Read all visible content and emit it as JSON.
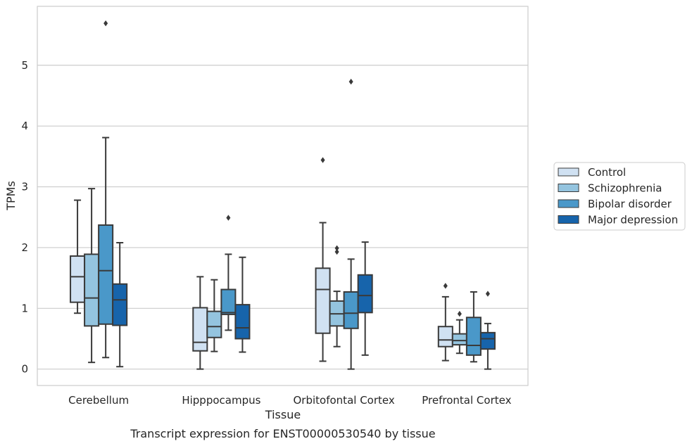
{
  "caption": "Transcript expression for ENST00000530540 by tissue",
  "chart_data": {
    "type": "boxplot",
    "xlabel": "Tissue",
    "ylabel": "TPMs",
    "ylim": [
      -0.27,
      5.97
    ],
    "yticks": [
      0,
      1,
      2,
      3,
      4,
      5
    ],
    "grid": true,
    "legend_placement": "right",
    "categories": [
      "Cerebellum",
      "Hipppocampus",
      "Orbitofontal Cortex",
      "Prefrontal Cortex"
    ],
    "series": [
      {
        "name": "Control",
        "color": "#d0e1f2",
        "boxes": [
          {
            "whisker_low": 0.92,
            "q1": 1.1,
            "median": 1.52,
            "q3": 1.86,
            "whisker_high": 2.78,
            "outliers": []
          },
          {
            "whisker_low": 0.0,
            "q1": 0.3,
            "median": 0.44,
            "q3": 1.01,
            "whisker_high": 1.52,
            "outliers": []
          },
          {
            "whisker_low": 0.13,
            "q1": 0.59,
            "median": 1.31,
            "q3": 1.66,
            "whisker_high": 2.41,
            "outliers": [
              3.44
            ]
          },
          {
            "whisker_low": 0.14,
            "q1": 0.37,
            "median": 0.48,
            "q3": 0.7,
            "whisker_high": 1.19,
            "outliers": [
              1.37
            ]
          }
        ]
      },
      {
        "name": "Schizophrenia",
        "color": "#94c4df",
        "boxes": [
          {
            "whisker_low": 0.11,
            "q1": 0.71,
            "median": 1.17,
            "q3": 1.89,
            "whisker_high": 2.97,
            "outliers": []
          },
          {
            "whisker_low": 0.29,
            "q1": 0.52,
            "median": 0.7,
            "q3": 0.95,
            "whisker_high": 1.47,
            "outliers": []
          },
          {
            "whisker_low": 0.37,
            "q1": 0.71,
            "median": 0.91,
            "q3": 1.12,
            "whisker_high": 1.28,
            "outliers": [
              1.93,
              1.99
            ]
          },
          {
            "whisker_low": 0.26,
            "q1": 0.4,
            "median": 0.47,
            "q3": 0.58,
            "whisker_high": 0.81,
            "outliers": [
              0.91
            ]
          }
        ]
      },
      {
        "name": "Bipolar disorder",
        "color": "#4a98c9",
        "boxes": [
          {
            "whisker_low": 0.19,
            "q1": 0.74,
            "median": 1.62,
            "q3": 2.37,
            "whisker_high": 3.81,
            "outliers": [
              5.69
            ]
          },
          {
            "whisker_low": 0.64,
            "q1": 0.9,
            "median": 0.93,
            "q3": 1.31,
            "whisker_high": 1.89,
            "outliers": [
              2.49
            ]
          },
          {
            "whisker_low": 0.0,
            "q1": 0.67,
            "median": 0.92,
            "q3": 1.27,
            "whisker_high": 1.81,
            "outliers": [
              4.73
            ]
          },
          {
            "whisker_low": 0.12,
            "q1": 0.23,
            "median": 0.39,
            "q3": 0.85,
            "whisker_high": 1.27,
            "outliers": []
          }
        ]
      },
      {
        "name": "Major depression",
        "color": "#1764ab",
        "boxes": [
          {
            "whisker_low": 0.04,
            "q1": 0.72,
            "median": 1.14,
            "q3": 1.4,
            "whisker_high": 2.08,
            "outliers": []
          },
          {
            "whisker_low": 0.28,
            "q1": 0.5,
            "median": 0.68,
            "q3": 1.06,
            "whisker_high": 1.84,
            "outliers": []
          },
          {
            "whisker_low": 0.23,
            "q1": 0.93,
            "median": 1.21,
            "q3": 1.55,
            "whisker_high": 2.09,
            "outliers": []
          },
          {
            "whisker_low": 0.0,
            "q1": 0.33,
            "median": 0.5,
            "q3": 0.6,
            "whisker_high": 0.75,
            "outliers": [
              1.24
            ]
          }
        ]
      }
    ]
  }
}
